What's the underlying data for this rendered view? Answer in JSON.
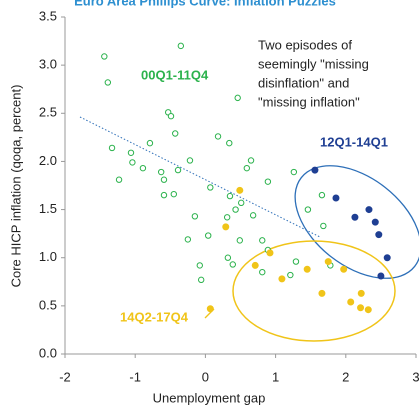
{
  "chart_data": {
    "type": "scatter",
    "title": "Euro Area Phillips Curve: Inflation Puzzles",
    "x_label": "Unemployment gap",
    "y_label": "Core HICP inflation (qoqa, percent)",
    "xlim": [
      -2,
      3
    ],
    "ylim": [
      0,
      3.5
    ],
    "xticks": [
      -2,
      -1,
      0,
      1,
      2,
      3
    ],
    "yticks": [
      {
        "value": 0,
        "label": "0.0"
      },
      0.5,
      {
        "value": 1,
        "label": "1.0"
      },
      1.5,
      {
        "value": 2,
        "label": "2.0"
      },
      2.5,
      {
        "value": 3,
        "label": "3.0"
      },
      3.5
    ],
    "annotation": [
      "Two episodes of",
      "seemingly \"missing",
      "disinflation\" and",
      "\"missing inflation\""
    ],
    "series": [
      {
        "name": "00Q1-11Q4",
        "color": "#2bb24c",
        "filled": false,
        "x": [
          -1.44,
          -1.39,
          -0.35,
          -1.33,
          -1.06,
          -1.04,
          -1.23,
          -0.79,
          -0.89,
          -0.53,
          -0.49,
          -0.43,
          -0.63,
          -0.59,
          -0.59,
          -0.45,
          -0.39,
          -0.22,
          0.18,
          0.46,
          0.34,
          -0.15,
          -0.25,
          0.07,
          0.04,
          0.31,
          0.35,
          0.43,
          0.51,
          0.59,
          0.65,
          0.68,
          0.49,
          0.32,
          0.39,
          -0.06,
          -0.08,
          0.81,
          0.89,
          0.81,
          1.21,
          1.29,
          0.89,
          1.46,
          1.66,
          1.26,
          1.68,
          1.78
        ],
        "y": [
          3.09,
          2.82,
          3.2,
          2.14,
          2.09,
          1.99,
          1.81,
          2.19,
          1.93,
          2.51,
          2.47,
          2.29,
          1.89,
          1.81,
          1.65,
          1.66,
          1.91,
          2.01,
          2.26,
          2.66,
          2.19,
          1.43,
          1.19,
          1.73,
          1.23,
          1.42,
          1.64,
          1.5,
          1.57,
          1.93,
          2.01,
          1.44,
          1.18,
          1.0,
          0.93,
          0.77,
          0.92,
          1.18,
          1.08,
          0.85,
          0.82,
          0.96,
          1.79,
          1.5,
          1.65,
          1.89,
          1.33,
          0.92
        ]
      },
      {
        "name": "12Q1-14Q1",
        "color": "#1f3f93",
        "filled": true,
        "x": [
          1.56,
          1.86,
          2.13,
          2.33,
          2.42,
          2.47,
          2.59,
          2.5
        ],
        "y": [
          1.91,
          1.62,
          1.42,
          1.5,
          1.37,
          1.24,
          1.0,
          0.81
        ]
      },
      {
        "name": "14Q2-17Q4",
        "color": "#f0c419",
        "filled": true,
        "x": [
          0.49,
          0.29,
          0.92,
          0.71,
          1.09,
          1.66,
          1.45,
          1.75,
          1.97,
          2.22,
          2.21,
          2.07,
          2.32,
          0.07
        ],
        "y": [
          1.7,
          1.32,
          1.05,
          0.92,
          0.78,
          0.63,
          0.88,
          0.96,
          0.88,
          0.63,
          0.48,
          0.54,
          0.46,
          0.47
        ]
      }
    ]
  }
}
